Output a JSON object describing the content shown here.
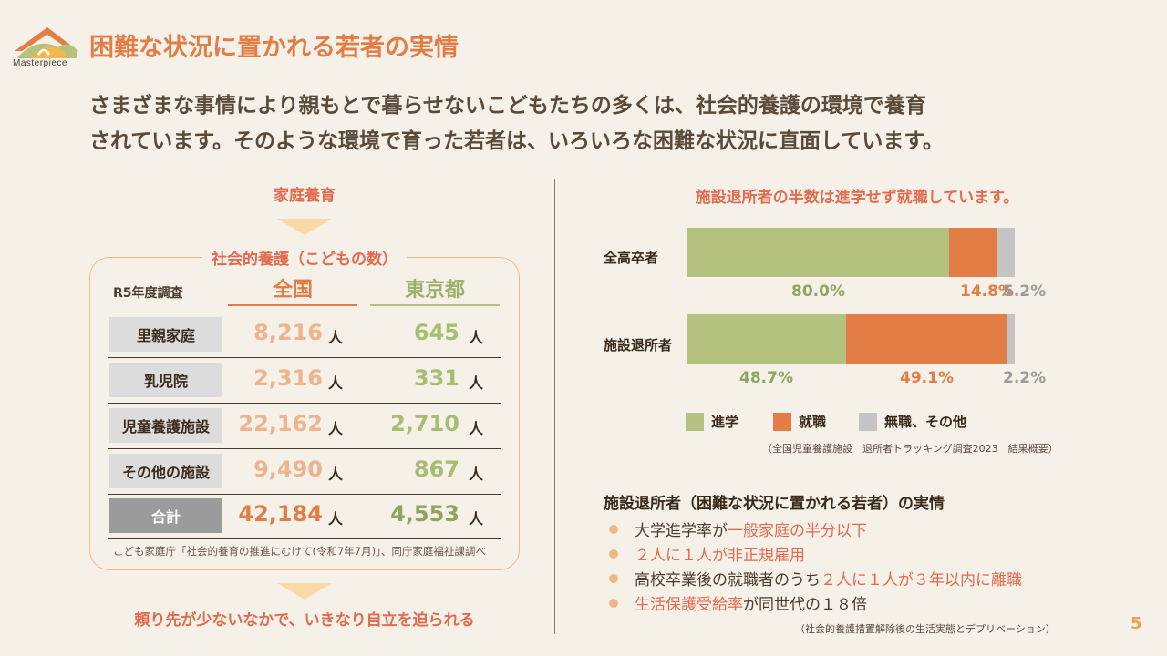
{
  "header": {
    "logo_text": "Masterpiece",
    "title": "困難な状況に置かれる若者の実情"
  },
  "intro": {
    "line1": "さまざまな事情により親もとで暮らせないこどもたちの多くは、社会的養護の環境で養育",
    "line2": "されています。そのような環境で育った若者は、いろいろな困難な状況に直面しています。"
  },
  "left": {
    "top_label": "家庭養育",
    "box_title": "社会的養護（こどもの数）",
    "survey_label": "R5年度調査",
    "col_national": "全国",
    "col_tokyo": "東京都",
    "unit": "人",
    "rows": [
      {
        "label": "里親家庭",
        "national": "8,216",
        "tokyo": "645"
      },
      {
        "label": "乳児院",
        "national": "2,316",
        "tokyo": "331"
      },
      {
        "label": "児童養護施設",
        "national": "22,162",
        "tokyo": "2,710"
      },
      {
        "label": "その他の施設",
        "national": "9,490",
        "tokyo": "867"
      },
      {
        "label": "合計",
        "national": "42,184",
        "tokyo": "4,553"
      }
    ],
    "source": "こども家庭庁「社会的養育の推進にむけて(令和7年7月)」、同庁家庭福祉課調べ",
    "bottom_message": "頼り先が少ないなかで、いきなり自立を迫られる"
  },
  "chart_data": {
    "type": "bar",
    "orientation": "horizontal-stacked-100",
    "title": "施設退所者の半数は進学せず就職しています。",
    "categories": [
      "全高卒者",
      "施設退所者"
    ],
    "series": [
      {
        "name": "進学",
        "color": "#b5c17e",
        "values": [
          80.0,
          48.7
        ],
        "labels": [
          "80.0%",
          "48.7%"
        ]
      },
      {
        "name": "就職",
        "color": "#e27d45",
        "values": [
          14.8,
          49.1
        ],
        "labels": [
          "14.8%",
          "49.1%"
        ]
      },
      {
        "name": "無職、その他",
        "color": "#c4c4c4",
        "values": [
          5.2,
          2.2
        ],
        "labels": [
          "5.2%",
          "2.2%"
        ]
      }
    ],
    "xlim": [
      0,
      100
    ],
    "source": "（全国児童養護施設　退所者トラッキング調査2023　結果概要）"
  },
  "facts": {
    "title": "施設退所者（困難な状況に置かれる若者）の実情",
    "items": [
      [
        {
          "t": "大学進学率が",
          "h": false
        },
        {
          "t": "一般家庭の半分以下",
          "h": true
        }
      ],
      [
        {
          "t": "２人に１人が非正規雇用",
          "h": true
        }
      ],
      [
        {
          "t": "高校卒業後の就職者のうち",
          "h": false
        },
        {
          "t": "２人に１人が３年以内に離職",
          "h": true
        }
      ],
      [
        {
          "t": "生活保護受給率",
          "h": true
        },
        {
          "t": "が同世代の１８倍",
          "h": false
        }
      ]
    ],
    "source": "（社会的養護措置解除後の生活実態とデプリベーション）"
  },
  "page_number": "5",
  "colors": {
    "accent": "#e27d45",
    "red": "#e26b4f",
    "green": "#b5c17e",
    "gray": "#c4c4c4",
    "background": "#f6f1e8"
  }
}
